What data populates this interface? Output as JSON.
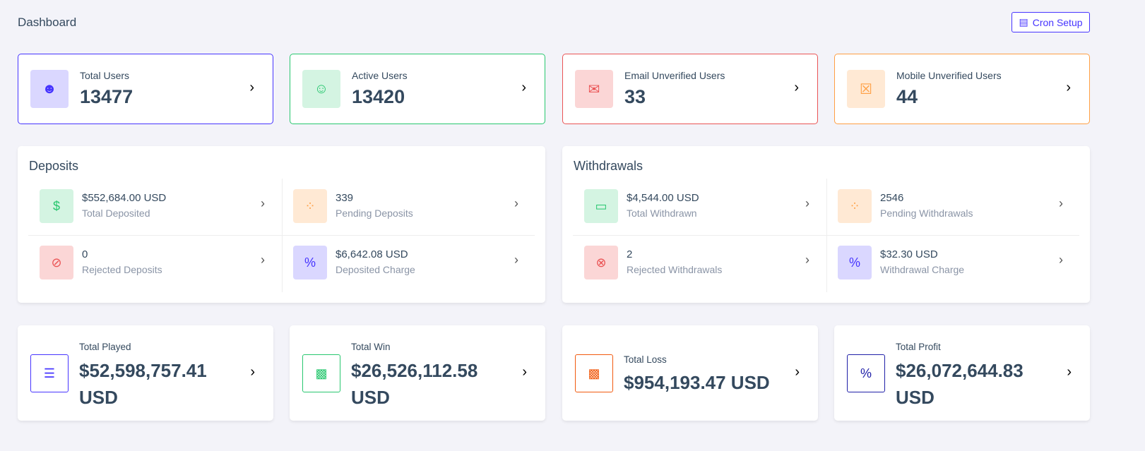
{
  "header": {
    "title": "Dashboard",
    "cron_label": "Cron Setup"
  },
  "user_cards": [
    {
      "label": "Total Users",
      "value": "13477",
      "color": "#4634ff",
      "bg": "#dad7ff",
      "icon": "users-icon"
    },
    {
      "label": "Active Users",
      "value": "13420",
      "color": "#28c76f",
      "bg": "#d4f4e2",
      "icon": "user-check-icon"
    },
    {
      "label": "Email Unverified Users",
      "value": "33",
      "color": "#ea5455",
      "bg": "#fbd6d6",
      "icon": "envelope-icon"
    },
    {
      "label": "Mobile Unverified Users",
      "value": "44",
      "color": "#ff9f43",
      "bg": "#ffe9d4",
      "icon": "comment-slash-icon"
    }
  ],
  "deposits": {
    "title": "Deposits",
    "items": [
      {
        "value": "$552,684.00 USD",
        "label": "Total Deposited",
        "color": "#28c76f",
        "bg": "#d4f4e2",
        "icon": "hand-dollar-icon"
      },
      {
        "value": "339",
        "label": "Pending Deposits",
        "color": "#ff9f43",
        "bg": "#ffe9d4",
        "icon": "spinner-icon"
      },
      {
        "value": "0",
        "label": "Rejected Deposits",
        "color": "#ea5455",
        "bg": "#fbd6d6",
        "icon": "ban-icon"
      },
      {
        "value": "$6,642.08 USD",
        "label": "Deposited Charge",
        "color": "#4634ff",
        "bg": "#dad7ff",
        "icon": "percent-icon"
      }
    ]
  },
  "withdrawals": {
    "title": "Withdrawals",
    "items": [
      {
        "value": "$4,544.00 USD",
        "label": "Total Withdrawn",
        "color": "#28c76f",
        "bg": "#d4f4e2",
        "icon": "credit-card-icon"
      },
      {
        "value": "2546",
        "label": "Pending Withdrawals",
        "color": "#ff9f43",
        "bg": "#ffe9d4",
        "icon": "spinner-icon"
      },
      {
        "value": "2",
        "label": "Rejected Withdrawals",
        "color": "#ea5455",
        "bg": "#fbd6d6",
        "icon": "times-circle-icon"
      },
      {
        "value": "$32.30 USD",
        "label": "Withdrawal Charge",
        "color": "#4634ff",
        "bg": "#dad7ff",
        "icon": "percent-icon"
      }
    ]
  },
  "game_cards": [
    {
      "label": "Total Played",
      "value": "$52,598,757.41 USD",
      "color": "#4634ff",
      "icon": "list-icon"
    },
    {
      "label": "Total Win",
      "value": "$26,526,112.58 USD",
      "color": "#28c76f",
      "icon": "money-bill-icon"
    },
    {
      "label": "Total Loss",
      "value": "$954,193.47 USD",
      "color": "#f15a0f",
      "icon": "money-bill-icon"
    },
    {
      "label": "Total Profit",
      "value": "$26,072,644.83 USD",
      "color": "#1f1fa8",
      "icon": "percent-icon"
    }
  ]
}
